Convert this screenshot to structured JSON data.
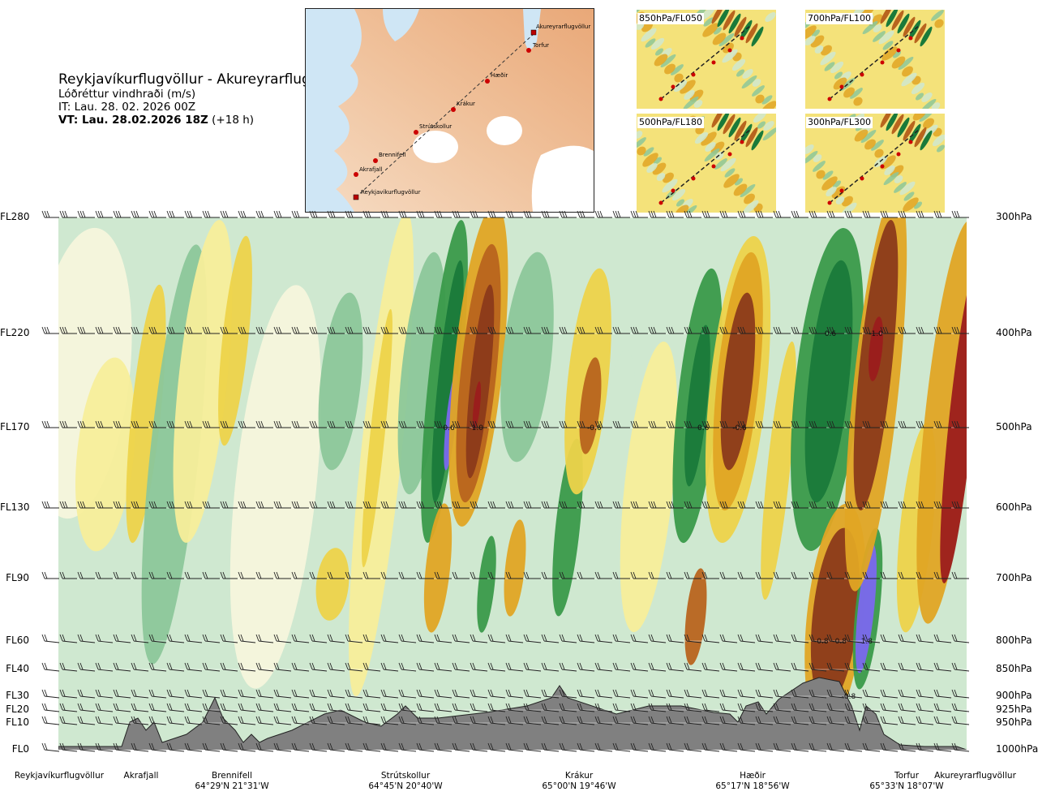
{
  "header": {
    "title": "Reykjavíkurflugvöllur - Akureyrarflugvöllur",
    "subtitle": "Lóðréttur vindhraði (m/s)",
    "it": "IT: Lau. 28. 02. 2026 00Z",
    "vt_bold": "VT: Lau. 28.02.2026 18Z",
    "vt_rest": " (+18 h)"
  },
  "map": {
    "route_labels": [
      "Akureyrarflugvöllur",
      "Torfur",
      "Hæðir",
      "Krákur",
      "Strútskollur",
      "Brennifell",
      "Akrafjall",
      "Reykjavíkurflugvöllur"
    ]
  },
  "insets": [
    {
      "label": "850hPa/FL050"
    },
    {
      "label": "700hPa/FL100"
    },
    {
      "label": "500hPa/FL180"
    },
    {
      "label": "300hPa/FL300"
    }
  ],
  "chart_data": {
    "type": "heatmap",
    "variable": "Lóðréttur vindhraði (m/s)",
    "left_axis_labels": [
      "FL280",
      "FL220",
      "FL170",
      "FL130",
      "FL90",
      "FL60",
      "FL40",
      "FL30",
      "FL20",
      "FL10",
      "FL0"
    ],
    "right_axis_labels": [
      "300hPa",
      "400hPa",
      "500hPa",
      "600hPa",
      "700hPa",
      "800hPa",
      "850hPa",
      "900hPa",
      "925hPa",
      "950hPa",
      "1000hPa"
    ],
    "pressure_levels_hpa": [
      300,
      400,
      500,
      600,
      700,
      800,
      850,
      900,
      925,
      950,
      1000
    ],
    "x_locations": [
      {
        "name": "Reykjavíkurflugvöllur",
        "coord": ""
      },
      {
        "name": "Akrafjall",
        "coord": ""
      },
      {
        "name": "Brennifell",
        "coord": "64°29'N 21°31'W"
      },
      {
        "name": "Strútskollur",
        "coord": "64°45'N 20°40'W"
      },
      {
        "name": "Krákur",
        "coord": "65°00'N 19°46'W"
      },
      {
        "name": "Hæðir",
        "coord": "65°17'N 18°56'W"
      },
      {
        "name": "Torfur",
        "coord": "65°33'N 18°07'W"
      },
      {
        "name": "Akureyrarflugvöllur",
        "coord": ""
      }
    ],
    "contour_labels": [
      {
        "text": "0.6",
        "x": 0.43,
        "p": 500
      },
      {
        "text": "-1.0",
        "x": 0.46,
        "p": 500
      },
      {
        "text": "-0.6",
        "x": 0.59,
        "p": 500
      },
      {
        "text": "0.6",
        "x": 0.71,
        "p": 500
      },
      {
        "text": "-0.6",
        "x": 0.75,
        "p": 500
      },
      {
        "text": "0.6",
        "x": 0.85,
        "p": 400
      },
      {
        "text": "-1.0",
        "x": 0.9,
        "p": 400
      },
      {
        "text": "-0.8",
        "x": 0.84,
        "p": 800
      },
      {
        "text": "-0.8",
        "x": 0.86,
        "p": 800
      },
      {
        "text": "1.8",
        "x": 0.89,
        "p": 800
      },
      {
        "text": "-0.8",
        "x": 0.87,
        "p": 900
      }
    ],
    "colors": {
      "strong_up": "#7b68ee",
      "up3": "#1a7a3a",
      "up2": "#3a9a4a",
      "up1": "#8cc79a",
      "up0": "#cfe8d0",
      "neutral": "#f5f5dc",
      "down0": "#f7ee9a",
      "down1": "#edd34a",
      "down2": "#e0a524",
      "down3": "#b8641e",
      "down4": "#8b3a1a",
      "strong_down": "#9b1c1c",
      "terrain": "#808080"
    }
  }
}
